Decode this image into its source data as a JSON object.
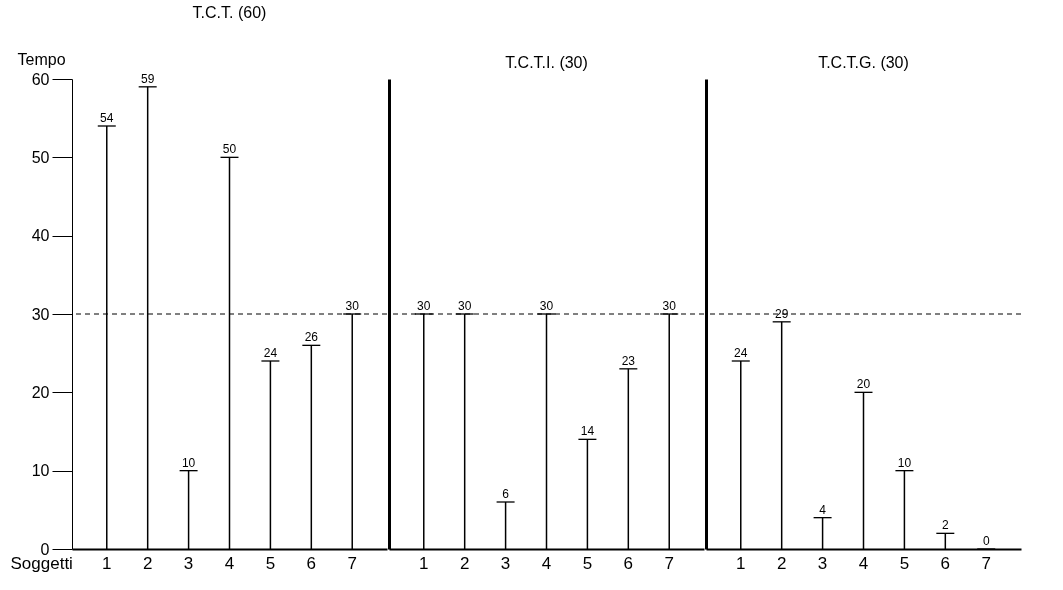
{
  "chart_data": [
    {
      "type": "bar",
      "title": "T.C.T. (60)",
      "xlabel": "Soggetti",
      "ylabel": "Tempo",
      "categories": [
        "1",
        "2",
        "3",
        "4",
        "5",
        "6",
        "7"
      ],
      "values": [
        54,
        59,
        10,
        50,
        24,
        26,
        30
      ],
      "color": "#000000",
      "ylim": [
        0,
        60
      ],
      "yticks": [
        0,
        10,
        20,
        30,
        40,
        50,
        60
      ],
      "data_labels": true,
      "ref_lines": [
        {
          "axis": "y",
          "value": 30,
          "line_style": "dashed",
          "color": "#000000"
        }
      ]
    },
    {
      "type": "bar",
      "title": "T.C.T.I. (30)",
      "categories": [
        "1",
        "2",
        "3",
        "4",
        "5",
        "6",
        "7"
      ],
      "values": [
        30,
        30,
        6,
        30,
        14,
        23,
        30
      ],
      "color": "#000000",
      "ylim": [
        0,
        60
      ],
      "yticks": [
        0,
        10,
        20,
        30,
        40,
        50,
        60
      ],
      "data_labels": true,
      "tick_labels": "x",
      "ref_lines": [
        {
          "axis": "y",
          "value": 30,
          "line_style": "dashed",
          "color": "#000000"
        }
      ]
    },
    {
      "type": "bar",
      "title": "T.C.T.G. (30)",
      "categories": [
        "1",
        "2",
        "3",
        "4",
        "5",
        "6",
        "7"
      ],
      "values": [
        24,
        29,
        4,
        20,
        10,
        2,
        0
      ],
      "color": "#000000",
      "ylim": [
        0,
        60
      ],
      "yticks": [
        0,
        10,
        20,
        30,
        40,
        50,
        60
      ],
      "data_labels": true,
      "tick_labels": "x",
      "ref_lines": [
        {
          "axis": "y",
          "value": 30,
          "line_style": "dashed",
          "color": "#000000"
        }
      ]
    }
  ]
}
